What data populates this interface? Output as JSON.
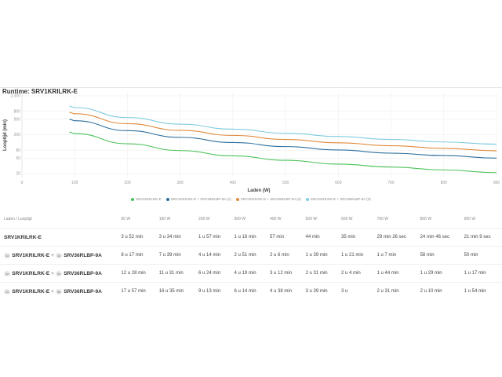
{
  "title": "Runtime: SRV1KRILRK-E",
  "chart_data": {
    "type": "line",
    "title": "Runtime: SRV1KRILRK-E",
    "xlabel": "Laden (W)",
    "ylabel": "Looptijd (min)",
    "xlim": [
      0,
      900
    ],
    "ylim": [
      20,
      2000
    ],
    "yscale": "log",
    "xticks": [
      "0",
      "100",
      "200",
      "300",
      "400",
      "500",
      "600",
      "700",
      "800",
      "900"
    ],
    "yticks": [
      "2,000",
      "800",
      "500",
      "200",
      "80",
      "50",
      "20"
    ],
    "ytick_values": [
      2000,
      800,
      500,
      200,
      80,
      50,
      20
    ],
    "x": [
      90,
      100,
      200,
      300,
      400,
      500,
      600,
      700,
      800,
      900
    ],
    "series": [
      {
        "name": "SRV1KRILRK-E",
        "color": "#4cc35a",
        "values": [
          232,
          214,
          117,
          78,
          57,
          44,
          35,
          29.4,
          24.8,
          21.2
        ]
      },
      {
        "name": "SRV1KRILRK-E + SRV36RLBP-9A (1)",
        "color": "#2e6f9e",
        "values": [
          497,
          459,
          254,
          171,
          126,
          99,
          81,
          67,
          58,
          50
        ]
      },
      {
        "name": "SRV1KRILRK-E + SRV36RLBP-9A (2)",
        "color": "#e08a3c",
        "values": [
          748,
          691,
          384,
          259,
          192,
          151,
          124,
          104,
          89,
          77
        ]
      },
      {
        "name": "SRV1KRILRK-E + SRV36RLBP-9A (3)",
        "color": "#7fcbe0",
        "values": [
          1077,
          995,
          553,
          374,
          278,
          219,
          180,
          151,
          130,
          114
        ]
      }
    ],
    "grid": true,
    "legend_position": "bottom"
  },
  "table": {
    "header_first": "Laden / Looptijd",
    "columns": [
      "90 W",
      "100 W",
      "200 W",
      "300 W",
      "400 W",
      "500 W",
      "600 W",
      "700 W",
      "800 W",
      "900 W"
    ],
    "rows": [
      {
        "name": "SRV1KRILRK-E",
        "qty1": "",
        "plus": "",
        "qty2": "",
        "battery": "",
        "values": [
          "3 u 52 min",
          "3 u 34 min",
          "1 u 57 min",
          "1 u 18 min",
          "57 min",
          "44 min",
          "35 min",
          "29 min 26 sec",
          "24 min 46 sec",
          "21 min 9 sec"
        ]
      },
      {
        "name": "SRV1KRILRK-E",
        "qty1": "1x",
        "plus": "+",
        "qty2": "1x",
        "battery": "SRV36RLBP-9A",
        "values": [
          "8 u 17 min",
          "7 u 39 min",
          "4 u 14 min",
          "2 u 51 min",
          "2 u 6 min",
          "1 u 39 min",
          "1 u 21 min",
          "1 u 7 min",
          "58 min",
          "50 min"
        ]
      },
      {
        "name": "SRV1KRILRK-E",
        "qty1": "1x",
        "plus": "+",
        "qty2": "2x",
        "battery": "SRV36RLBP-9A",
        "values": [
          "12 u 28 min",
          "11 u 31 min",
          "6 u 24 min",
          "4 u 19 min",
          "3 u 12 min",
          "2 u 31 min",
          "2 u 4 min",
          "1 u 44 min",
          "1 u 29 min",
          "1 u 17 min"
        ]
      },
      {
        "name": "SRV1KRILRK-E",
        "qty1": "1x",
        "plus": "+",
        "qty2": "3x",
        "battery": "SRV36RLBP-9A",
        "values": [
          "17 u 57 min",
          "16 u 35 min",
          "9 u 13 min",
          "6 u 14 min",
          "4 u 38 min",
          "3 u 39 min",
          "3 u",
          "2 u 31 min",
          "2 u 10 min",
          "1 u 54 min"
        ]
      }
    ]
  }
}
